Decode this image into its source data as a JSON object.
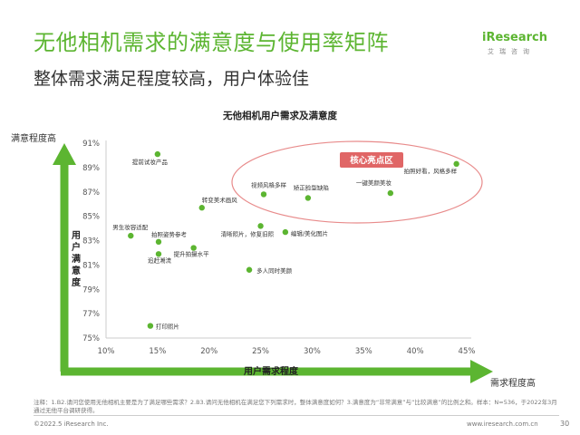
{
  "page": {
    "title": "无他相机需求的满意度与使用率矩阵",
    "subtitle": "整体需求满足程度较高，用户体验佳",
    "logo_text": "iResearch",
    "logo_cn": "艾瑞咨询",
    "footnote": "注释：1.B2.请问您使用无他相机主要是为了满足哪些需求？2.B3.请问无他相机在满足您下列需求时，整体满意度如何？3.满意度为“非常满意”与“比较满意”的比例之和。样本：N=536，于2022年3月通过无他平台调研获得。",
    "copyright": "©2022.5 iResearch Inc.",
    "website": "www.iresearch.com.cn",
    "page_number": "30",
    "accent_color": "#5cb531"
  },
  "chart_data": {
    "type": "scatter",
    "title": "无他相机用户需求及满意度",
    "xlabel": "用户需求程度",
    "ylabel": "用户满意度",
    "x_arrow_label": "需求程度高",
    "y_arrow_label": "满意程度高",
    "xlim": [
      10,
      45
    ],
    "ylim": [
      75,
      91
    ],
    "x_ticks": [
      "10%",
      "15%",
      "20%",
      "25%",
      "30%",
      "35%",
      "40%",
      "45%"
    ],
    "y_ticks": [
      "75%",
      "77%",
      "79%",
      "81%",
      "83%",
      "85%",
      "87%",
      "89%",
      "91%"
    ],
    "highlight_label": "核心亮点区",
    "points": [
      {
        "label": "提前试妆产品",
        "x": 15.0,
        "y": 90.1
      },
      {
        "label": "转变美术画风",
        "x": 19.3,
        "y": 85.7
      },
      {
        "label": "男生妆容适配",
        "x": 12.4,
        "y": 83.4
      },
      {
        "label": "拍照姿势参考",
        "x": 15.1,
        "y": 82.9
      },
      {
        "label": "追赶潮流",
        "x": 15.1,
        "y": 81.9
      },
      {
        "label": "提升拍摄水平",
        "x": 18.5,
        "y": 82.4
      },
      {
        "label": "打印照片",
        "x": 14.3,
        "y": 76.0
      },
      {
        "label": "清晰照片，修复旧照",
        "x": 25.0,
        "y": 84.2
      },
      {
        "label": "编辑/美化图片",
        "x": 27.4,
        "y": 83.7
      },
      {
        "label": "多人同时美颜",
        "x": 23.9,
        "y": 80.6
      },
      {
        "label": "视频风格多样",
        "x": 25.3,
        "y": 86.8
      },
      {
        "label": "矫正脸型缺陷",
        "x": 29.6,
        "y": 86.5
      },
      {
        "label": "一键美颜美妆",
        "x": 37.6,
        "y": 86.9
      },
      {
        "label": "拍照好看，风格多样",
        "x": 44.0,
        "y": 89.3
      }
    ]
  }
}
